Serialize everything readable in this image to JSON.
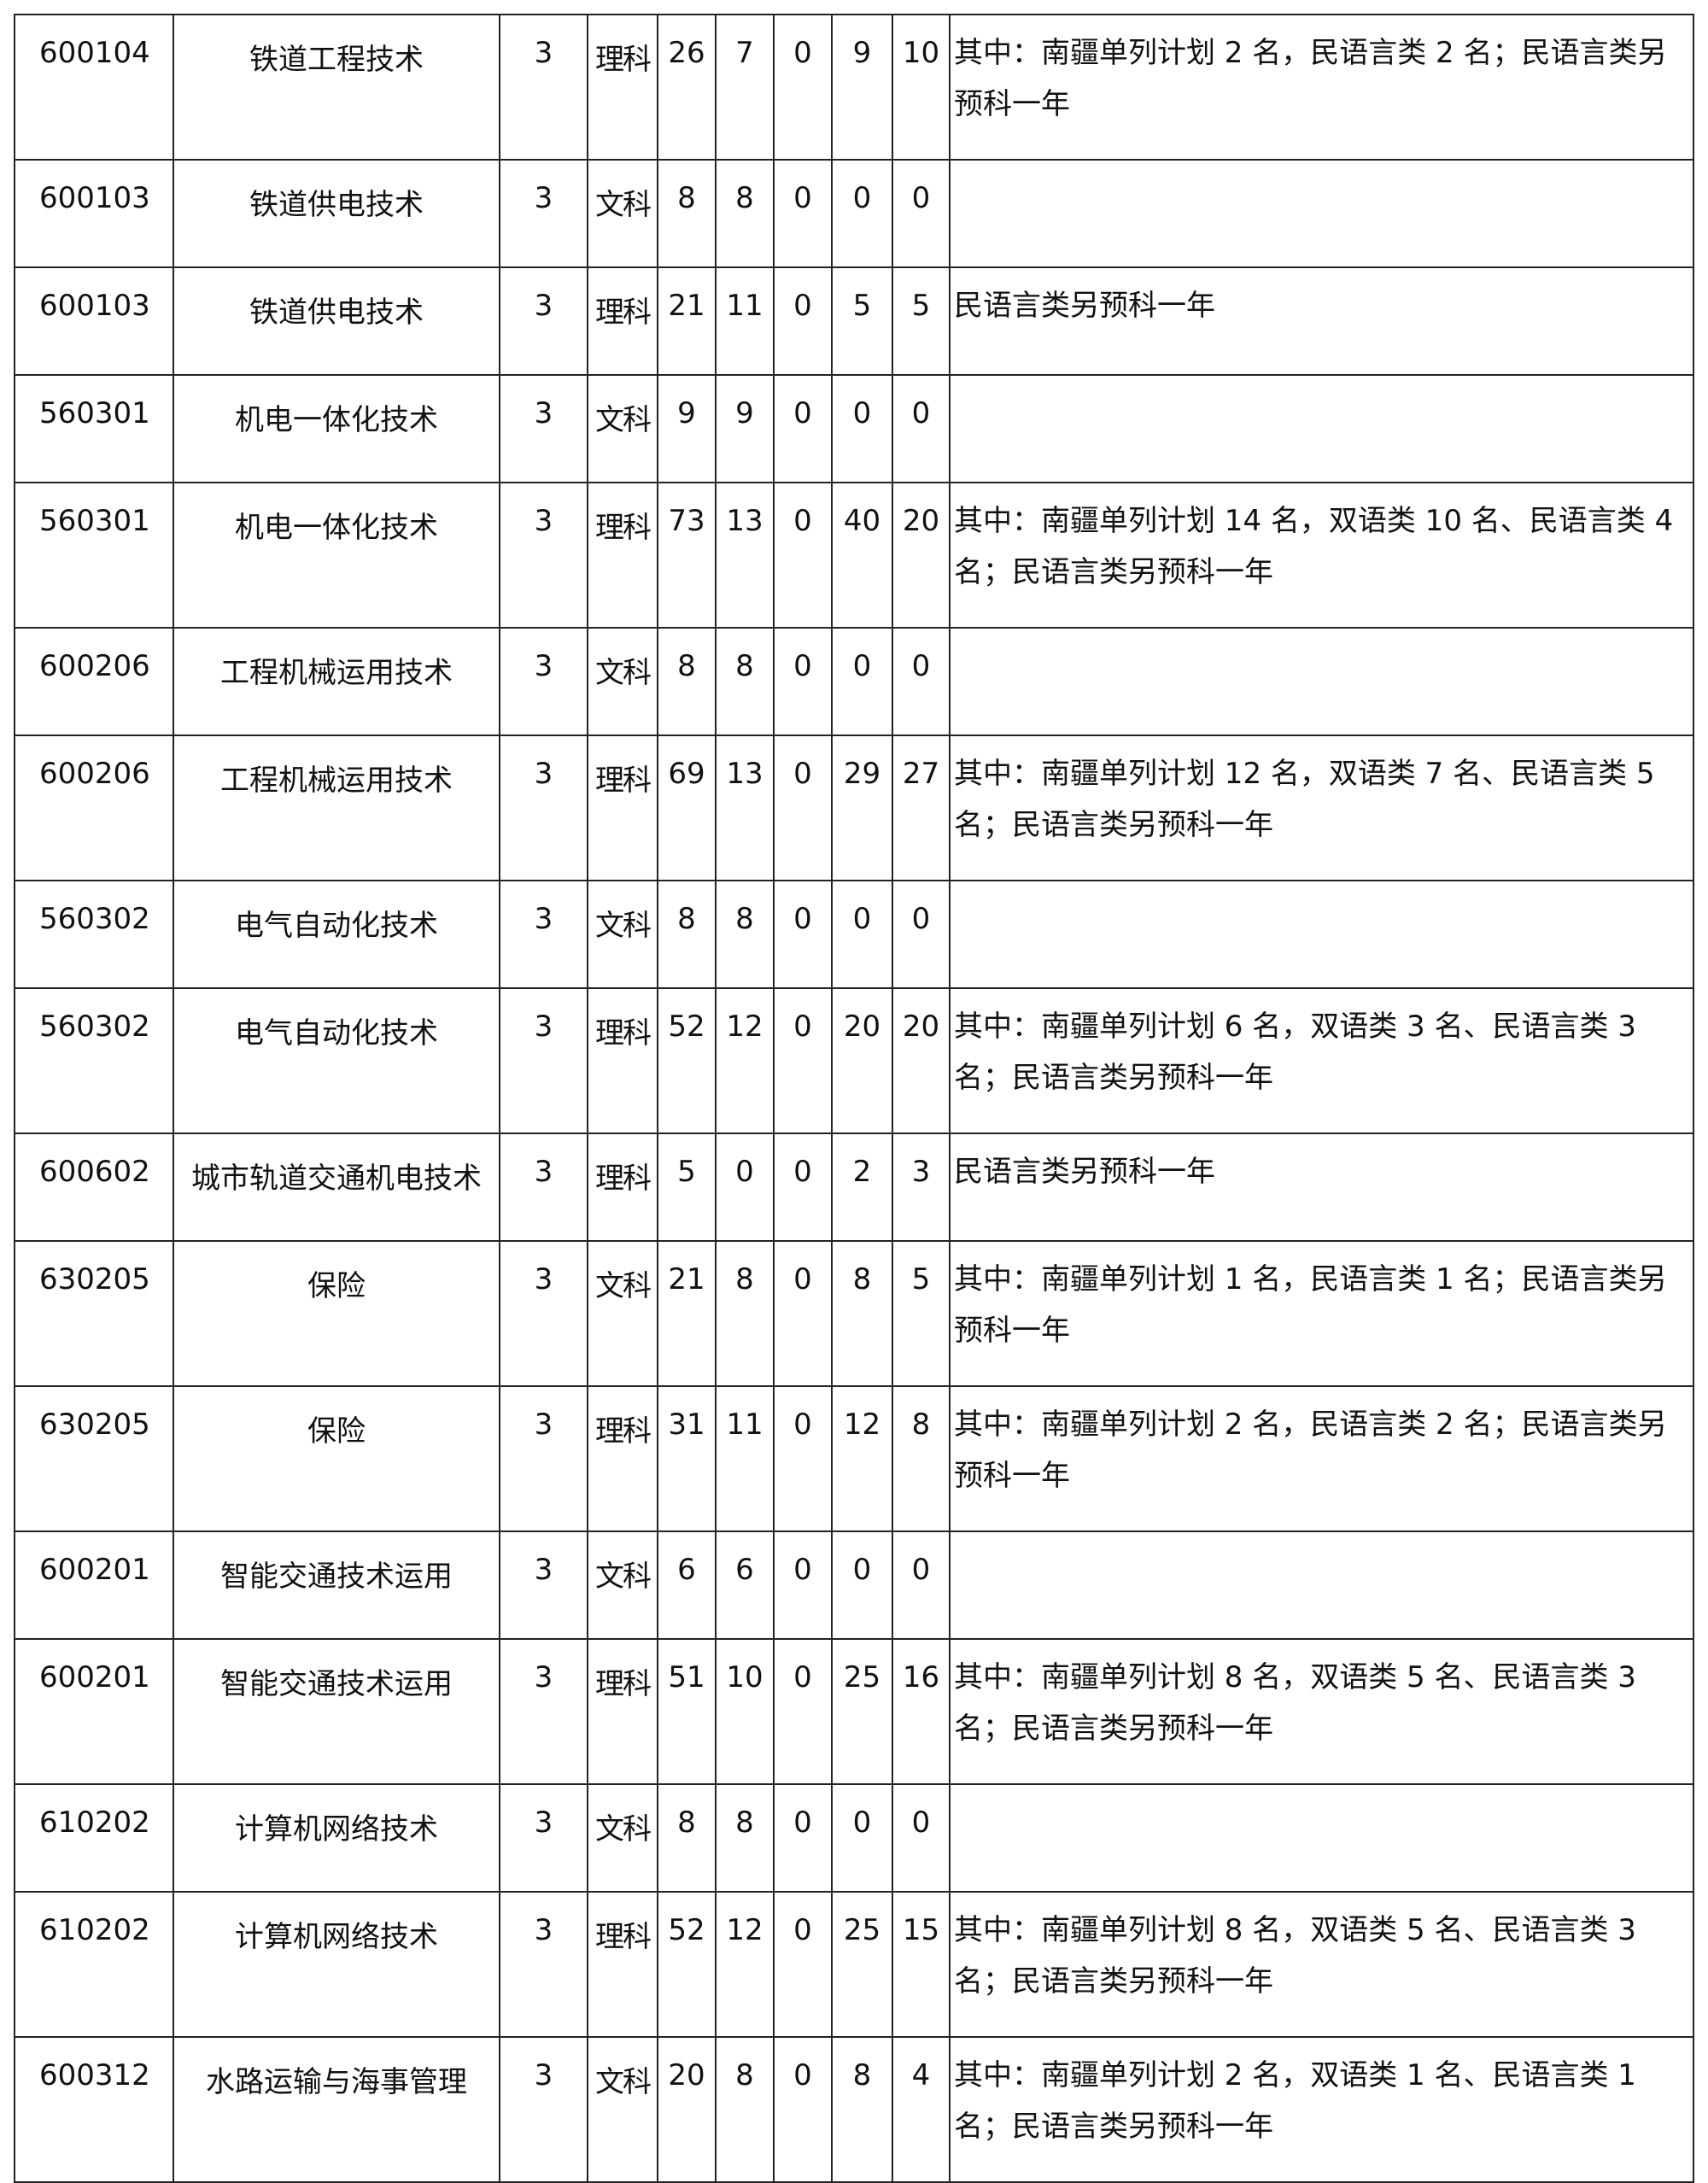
{
  "rows": [
    {
      "code": "600104",
      "major": "铁道工程技术",
      "years": "3",
      "subject": "理科",
      "total": "26",
      "c1": "7",
      "c2": "0",
      "c3": "9",
      "c4": "10",
      "note": "其中：南疆单列计划 2 名，民语言类 2 名；民语言类另预科一年"
    },
    {
      "code": "600103",
      "major": "铁道供电技术",
      "years": "3",
      "subject": "文科",
      "total": "8",
      "c1": "8",
      "c2": "0",
      "c3": "0",
      "c4": "0",
      "note": ""
    },
    {
      "code": "600103",
      "major": "铁道供电技术",
      "years": "3",
      "subject": "理科",
      "total": "21",
      "c1": "11",
      "c2": "0",
      "c3": "5",
      "c4": "5",
      "note": "民语言类另预科一年"
    },
    {
      "code": "560301",
      "major": "机电一体化技术",
      "years": "3",
      "subject": "文科",
      "total": "9",
      "c1": "9",
      "c2": "0",
      "c3": "0",
      "c4": "0",
      "note": ""
    },
    {
      "code": "560301",
      "major": "机电一体化技术",
      "years": "3",
      "subject": "理科",
      "total": "73",
      "c1": "13",
      "c2": "0",
      "c3": "40",
      "c4": "20",
      "note": "其中：南疆单列计划 14 名，双语类 10 名、民语言类 4 名；民语言类另预科一年"
    },
    {
      "code": "600206",
      "major": "工程机械运用技术",
      "years": "3",
      "subject": "文科",
      "total": "8",
      "c1": "8",
      "c2": "0",
      "c3": "0",
      "c4": "0",
      "note": ""
    },
    {
      "code": "600206",
      "major": "工程机械运用技术",
      "years": "3",
      "subject": "理科",
      "total": "69",
      "c1": "13",
      "c2": "0",
      "c3": "29",
      "c4": "27",
      "note": "其中：南疆单列计划 12 名，双语类 7 名、民语言类 5 名；民语言类另预科一年"
    },
    {
      "code": "560302",
      "major": "电气自动化技术",
      "years": "3",
      "subject": "文科",
      "total": "8",
      "c1": "8",
      "c2": "0",
      "c3": "0",
      "c4": "0",
      "note": ""
    },
    {
      "code": "560302",
      "major": "电气自动化技术",
      "years": "3",
      "subject": "理科",
      "total": "52",
      "c1": "12",
      "c2": "0",
      "c3": "20",
      "c4": "20",
      "note": "其中：南疆单列计划 6 名，双语类 3 名、民语言类 3 名；民语言类另预科一年"
    },
    {
      "code": "600602",
      "major": "城市轨道交通机电技术",
      "years": "3",
      "subject": "理科",
      "total": "5",
      "c1": "0",
      "c2": "0",
      "c3": "2",
      "c4": "3",
      "note": "民语言类另预科一年"
    },
    {
      "code": "630205",
      "major": "保险",
      "years": "3",
      "subject": "文科",
      "total": "21",
      "c1": "8",
      "c2": "0",
      "c3": "8",
      "c4": "5",
      "note": "其中：南疆单列计划 1 名，民语言类 1 名；民语言类另预科一年"
    },
    {
      "code": "630205",
      "major": "保险",
      "years": "3",
      "subject": "理科",
      "total": "31",
      "c1": "11",
      "c2": "0",
      "c3": "12",
      "c4": "8",
      "note": "其中：南疆单列计划 2 名，民语言类 2 名；民语言类另预科一年"
    },
    {
      "code": "600201",
      "major": "智能交通技术运用",
      "years": "3",
      "subject": "文科",
      "total": "6",
      "c1": "6",
      "c2": "0",
      "c3": "0",
      "c4": "0",
      "note": ""
    },
    {
      "code": "600201",
      "major": "智能交通技术运用",
      "years": "3",
      "subject": "理科",
      "total": "51",
      "c1": "10",
      "c2": "0",
      "c3": "25",
      "c4": "16",
      "note": "其中：南疆单列计划 8 名，双语类 5 名、民语言类 3 名；民语言类另预科一年"
    },
    {
      "code": "610202",
      "major": "计算机网络技术",
      "years": "3",
      "subject": "文科",
      "total": "8",
      "c1": "8",
      "c2": "0",
      "c3": "0",
      "c4": "0",
      "note": ""
    },
    {
      "code": "610202",
      "major": "计算机网络技术",
      "years": "3",
      "subject": "理科",
      "total": "52",
      "c1": "12",
      "c2": "0",
      "c3": "25",
      "c4": "15",
      "note": "其中：南疆单列计划 8 名，双语类 5 名、民语言类 3 名；民语言类另预科一年"
    },
    {
      "code": "600312",
      "major": "水路运输与海事管理",
      "years": "3",
      "subject": "文科",
      "total": "20",
      "c1": "8",
      "c2": "0",
      "c3": "8",
      "c4": "4",
      "note": "其中：南疆单列计划 2 名，双语类 1 名、民语言类 1 名；民语言类另预科一年"
    }
  ]
}
